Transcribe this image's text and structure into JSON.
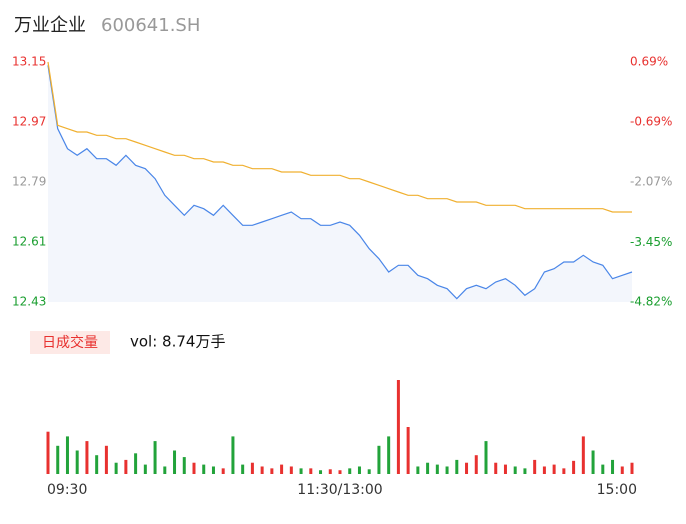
{
  "header": {
    "name": "万业企业",
    "code": "600641.SH"
  },
  "chart_data": [
    {
      "type": "line",
      "x": [
        0,
        4,
        8,
        12,
        16,
        20,
        24,
        28,
        32,
        36,
        40,
        44,
        48,
        52,
        56,
        60,
        64,
        68,
        72,
        76,
        80,
        84,
        88,
        92,
        96,
        100,
        104,
        108,
        112,
        116,
        120,
        124,
        128,
        132,
        136,
        140,
        144,
        148,
        152,
        156,
        160,
        164,
        168,
        172,
        176,
        180,
        184,
        188,
        192,
        196,
        200,
        204,
        208,
        212,
        216,
        220,
        224,
        228,
        232,
        236,
        240
      ],
      "xlim": [
        0,
        240
      ],
      "series": [
        {
          "color": "#4a86e8",
          "fill": "#f3f6fc",
          "values": [
            13.14,
            12.95,
            12.89,
            12.87,
            12.89,
            12.86,
            12.86,
            12.84,
            12.87,
            12.84,
            12.83,
            12.8,
            12.75,
            12.72,
            12.69,
            12.72,
            12.71,
            12.69,
            12.72,
            12.69,
            12.66,
            12.66,
            12.67,
            12.68,
            12.69,
            12.7,
            12.68,
            12.68,
            12.66,
            12.66,
            12.67,
            12.66,
            12.63,
            12.59,
            12.56,
            12.52,
            12.54,
            12.54,
            12.51,
            12.5,
            12.48,
            12.47,
            12.44,
            12.47,
            12.48,
            12.47,
            12.49,
            12.5,
            12.48,
            12.45,
            12.47,
            12.52,
            12.53,
            12.55,
            12.55,
            12.57,
            12.55,
            12.54,
            12.5,
            12.51,
            12.52
          ]
        },
        {
          "color": "#f0b030",
          "values": [
            13.15,
            12.96,
            12.95,
            12.94,
            12.94,
            12.93,
            12.93,
            12.92,
            12.92,
            12.91,
            12.9,
            12.89,
            12.88,
            12.87,
            12.87,
            12.86,
            12.86,
            12.85,
            12.85,
            12.84,
            12.84,
            12.83,
            12.83,
            12.83,
            12.82,
            12.82,
            12.82,
            12.81,
            12.81,
            12.81,
            12.81,
            12.8,
            12.8,
            12.79,
            12.78,
            12.77,
            12.76,
            12.75,
            12.75,
            12.74,
            12.74,
            12.74,
            12.73,
            12.73,
            12.73,
            12.72,
            12.72,
            12.72,
            12.72,
            12.71,
            12.71,
            12.71,
            12.71,
            12.71,
            12.71,
            12.71,
            12.71,
            12.71,
            12.7,
            12.7,
            12.7
          ]
        }
      ],
      "ylim": [
        12.43,
        13.15
      ],
      "yticks": [
        13.15,
        12.97,
        12.79,
        12.61,
        12.43
      ],
      "y2lim": [
        -4.82,
        0.69
      ],
      "y2ticks": [
        {
          "value": 0.69,
          "label": "0.69%"
        },
        {
          "value": -0.69,
          "label": "-0.69%"
        },
        {
          "value": -2.07,
          "label": "-2.07%"
        },
        {
          "value": -3.45,
          "label": "-3.45%"
        },
        {
          "value": -4.82,
          "label": "-4.82%"
        }
      ],
      "tick_colors": [
        "#e8312f",
        "#e8312f",
        "#999999",
        "#1a9e2f",
        "#1a9e2f"
      ]
    },
    {
      "type": "bar",
      "label": "日成交量",
      "vol_text": "vol: 8.74万手",
      "values": [
        45,
        30,
        40,
        25,
        35,
        20,
        30,
        12,
        15,
        22,
        10,
        35,
        8,
        25,
        18,
        12,
        10,
        8,
        6,
        40,
        10,
        12,
        8,
        6,
        10,
        8,
        6,
        6,
        4,
        5,
        4,
        6,
        8,
        5,
        30,
        40,
        100,
        50,
        8,
        12,
        10,
        8,
        15,
        12,
        20,
        35,
        12,
        10,
        8,
        6,
        15,
        8,
        10,
        6,
        14,
        40,
        25,
        10,
        15,
        8,
        12
      ],
      "ylim": [
        0,
        100
      ],
      "up_color": "#e8312f",
      "down_color": "#22a33a",
      "xticks": [
        {
          "value": 0,
          "label": "09:30"
        },
        {
          "value": 120,
          "label": "11:30/13:00"
        },
        {
          "value": 240,
          "label": "15:00"
        }
      ]
    }
  ]
}
